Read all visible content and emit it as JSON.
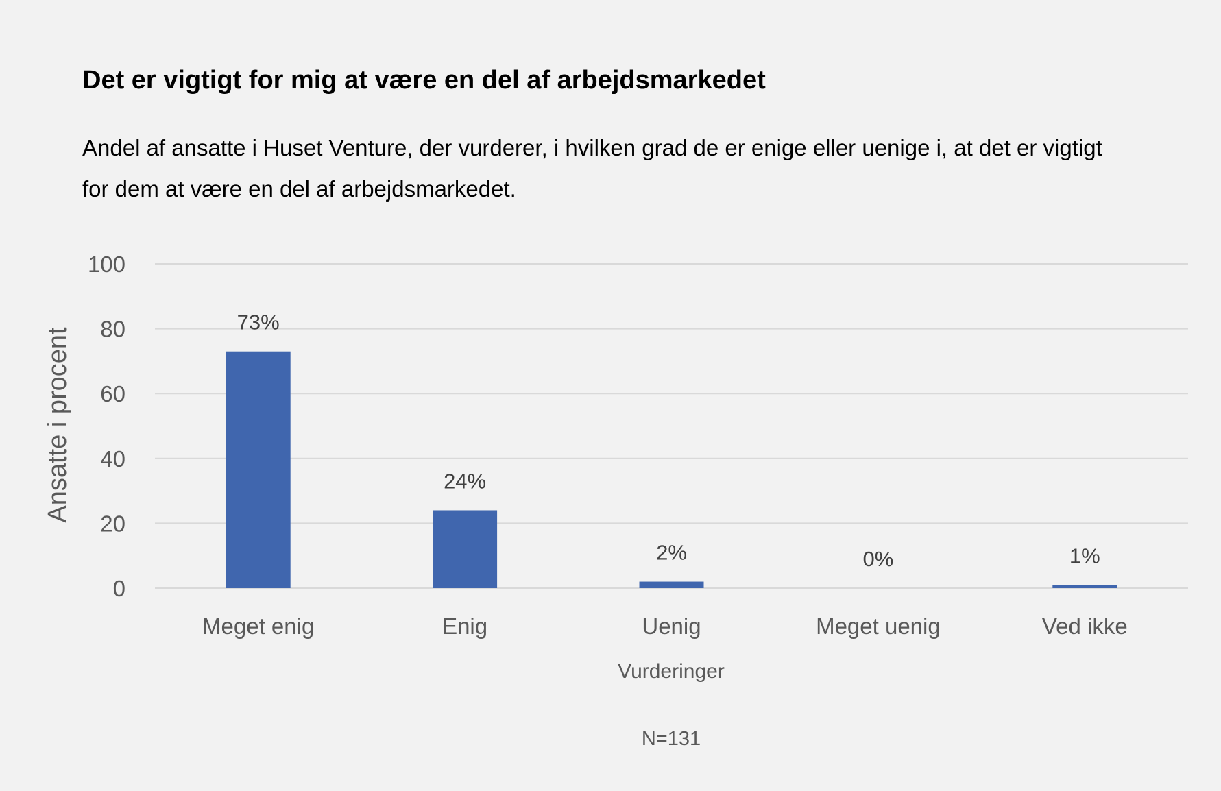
{
  "chart_data": {
    "type": "bar",
    "title": "Det er vigtigt for mig at være en del af arbejdsmarkedet",
    "subtitle": "Andel af ansatte i Huset Venture, der vurderer, i hvilken grad de er enige eller uenige i, at det er vigtigt for dem at være en del af arbejdsmarkedet.",
    "categories": [
      "Meget enig",
      "Enig",
      "Uenig",
      "Meget uenig",
      "Ved ikke"
    ],
    "values": [
      73,
      24,
      2,
      0,
      1
    ],
    "data_labels": [
      "73%",
      "24%",
      "2%",
      "0%",
      "1%"
    ],
    "xlabel": "Vurderinger",
    "ylabel": "Ansatte i procent",
    "ylim": [
      0,
      100
    ],
    "yticks": [
      0,
      20,
      40,
      60,
      80,
      100
    ],
    "grid": true,
    "note": "N=131",
    "colors": {
      "bar": "#4066ae",
      "grid": "#d9d9d9",
      "background": "#f2f2f2"
    }
  }
}
